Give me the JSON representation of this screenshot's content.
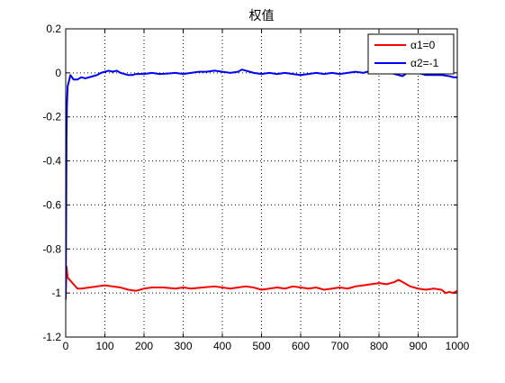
{
  "chart_data": {
    "type": "line",
    "title": "权值",
    "xlabel": "",
    "ylabel": "",
    "xlim": [
      0,
      1000
    ],
    "ylim": [
      -1.2,
      0.2
    ],
    "xticks": [
      0,
      100,
      200,
      300,
      400,
      500,
      600,
      700,
      800,
      900,
      1000
    ],
    "yticks": [
      0.2,
      0,
      -0.2,
      -0.4,
      -0.6,
      -0.8,
      -1,
      -1.2
    ],
    "xtick_labels": [
      "0",
      "100",
      "200",
      "300",
      "400",
      "500",
      "600",
      "700",
      "800",
      "900",
      "1000"
    ],
    "ytick_labels": [
      "0.2",
      "0",
      "-0.2",
      "-0.4",
      "-0.6",
      "-0.8",
      "-1",
      "-1.2"
    ],
    "grid": true,
    "legend_position": "top-right",
    "series": [
      {
        "name": "α1=0",
        "color": "#ff0000",
        "points": [
          [
            0,
            -1.02
          ],
          [
            2,
            -0.88
          ],
          [
            5,
            -0.93
          ],
          [
            10,
            -0.94
          ],
          [
            15,
            -0.95
          ],
          [
            20,
            -0.96
          ],
          [
            30,
            -0.98
          ],
          [
            40,
            -0.98
          ],
          [
            60,
            -0.975
          ],
          [
            80,
            -0.97
          ],
          [
            100,
            -0.965
          ],
          [
            120,
            -0.97
          ],
          [
            140,
            -0.975
          ],
          [
            160,
            -0.985
          ],
          [
            180,
            -0.99
          ],
          [
            200,
            -0.98
          ],
          [
            220,
            -0.975
          ],
          [
            250,
            -0.975
          ],
          [
            280,
            -0.98
          ],
          [
            300,
            -0.975
          ],
          [
            320,
            -0.98
          ],
          [
            350,
            -0.975
          ],
          [
            380,
            -0.97
          ],
          [
            400,
            -0.975
          ],
          [
            420,
            -0.98
          ],
          [
            440,
            -0.975
          ],
          [
            460,
            -0.97
          ],
          [
            480,
            -0.975
          ],
          [
            500,
            -0.985
          ],
          [
            520,
            -0.98
          ],
          [
            540,
            -0.975
          ],
          [
            560,
            -0.98
          ],
          [
            580,
            -0.97
          ],
          [
            600,
            -0.975
          ],
          [
            620,
            -0.98
          ],
          [
            640,
            -0.975
          ],
          [
            660,
            -0.985
          ],
          [
            680,
            -0.98
          ],
          [
            700,
            -0.975
          ],
          [
            720,
            -0.98
          ],
          [
            740,
            -0.97
          ],
          [
            760,
            -0.965
          ],
          [
            780,
            -0.96
          ],
          [
            800,
            -0.955
          ],
          [
            820,
            -0.96
          ],
          [
            840,
            -0.95
          ],
          [
            850,
            -0.94
          ],
          [
            860,
            -0.95
          ],
          [
            870,
            -0.96
          ],
          [
            880,
            -0.97
          ],
          [
            900,
            -0.98
          ],
          [
            920,
            -0.985
          ],
          [
            940,
            -0.98
          ],
          [
            960,
            -0.985
          ],
          [
            970,
            -1.0
          ],
          [
            980,
            -0.995
          ],
          [
            990,
            -1.0
          ],
          [
            1000,
            -0.99
          ]
        ]
      },
      {
        "name": "α2=-1",
        "color": "#0000ff",
        "points": [
          [
            0,
            -1.03
          ],
          [
            1,
            -0.7
          ],
          [
            2,
            -0.3
          ],
          [
            3,
            -0.15
          ],
          [
            5,
            -0.06
          ],
          [
            8,
            -0.04
          ],
          [
            12,
            -0.01
          ],
          [
            16,
            -0.02
          ],
          [
            20,
            -0.03
          ],
          [
            30,
            -0.03
          ],
          [
            40,
            -0.02
          ],
          [
            50,
            -0.025
          ],
          [
            60,
            -0.02
          ],
          [
            70,
            -0.015
          ],
          [
            80,
            -0.01
          ],
          [
            90,
            0.0
          ],
          [
            100,
            0.005
          ],
          [
            110,
            0.01
          ],
          [
            120,
            0.005
          ],
          [
            130,
            0.01
          ],
          [
            140,
            0.0
          ],
          [
            150,
            -0.005
          ],
          [
            160,
            -0.01
          ],
          [
            170,
            -0.01
          ],
          [
            180,
            -0.005
          ],
          [
            200,
            -0.005
          ],
          [
            220,
            0.0
          ],
          [
            240,
            -0.005
          ],
          [
            260,
            -0.003
          ],
          [
            280,
            0.0
          ],
          [
            300,
            -0.005
          ],
          [
            320,
            0.0
          ],
          [
            340,
            0.005
          ],
          [
            360,
            0.005
          ],
          [
            380,
            0.01
          ],
          [
            400,
            0.005
          ],
          [
            420,
            0.0
          ],
          [
            440,
            0.005
          ],
          [
            450,
            0.015
          ],
          [
            460,
            0.01
          ],
          [
            470,
            0.005
          ],
          [
            480,
            0.0
          ],
          [
            500,
            -0.005
          ],
          [
            520,
            0.0
          ],
          [
            540,
            -0.005
          ],
          [
            560,
            0.0
          ],
          [
            580,
            -0.005
          ],
          [
            600,
            -0.01
          ],
          [
            620,
            -0.005
          ],
          [
            640,
            0.0
          ],
          [
            660,
            -0.005
          ],
          [
            680,
            0.0
          ],
          [
            700,
            -0.005
          ],
          [
            720,
            0.0
          ],
          [
            740,
            0.005
          ],
          [
            760,
            0.0
          ],
          [
            780,
            0.01
          ],
          [
            790,
            0.02
          ],
          [
            800,
            0.025
          ],
          [
            810,
            0.02
          ],
          [
            830,
            0.0
          ],
          [
            850,
            -0.01
          ],
          [
            860,
            -0.015
          ],
          [
            880,
            0.01
          ],
          [
            900,
            0.0
          ],
          [
            920,
            -0.01
          ],
          [
            940,
            -0.01
          ],
          [
            960,
            -0.01
          ],
          [
            980,
            -0.015
          ],
          [
            990,
            -0.02
          ],
          [
            1000,
            -0.02
          ]
        ]
      }
    ]
  }
}
